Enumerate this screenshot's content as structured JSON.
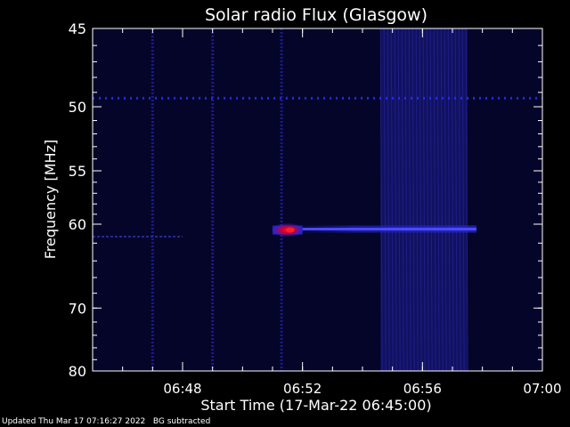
{
  "chart_data": {
    "type": "heatmap",
    "title": "Solar radio Flux (Glasgow)",
    "xlabel": "Start Time (17-Mar-22 06:45:00)",
    "ylabel": "Frequency [MHz]",
    "x_unit": "minutes after 06:45:00",
    "xlim": [
      0,
      15
    ],
    "ylim": [
      45,
      80
    ],
    "y_scale": "reciprocal",
    "x_ticks": [
      {
        "value": 3,
        "label": "06:48"
      },
      {
        "value": 7,
        "label": "06:52"
      },
      {
        "value": 11,
        "label": "06:56"
      },
      {
        "value": 15,
        "label": "07:00"
      }
    ],
    "y_ticks": [
      {
        "value": 45,
        "label": "45"
      },
      {
        "value": 50,
        "label": "50"
      },
      {
        "value": 55,
        "label": "55"
      },
      {
        "value": 60,
        "label": "60"
      },
      {
        "value": 70,
        "label": "70"
      },
      {
        "value": 80,
        "label": "80"
      }
    ],
    "features": [
      {
        "kind": "horizontal_band",
        "name": "interference line",
        "freq": 49.4,
        "start": 0,
        "end": 15
      },
      {
        "kind": "horizontal_band",
        "name": "faint emission line",
        "freq": 61.3,
        "start": 0,
        "end": 3
      },
      {
        "kind": "burst",
        "name": "peak burst",
        "freq": 60.6,
        "start": 6.0,
        "end": 7.0
      },
      {
        "kind": "horizontal_band",
        "name": "drifting emission line",
        "freq": 60.5,
        "start": 7.0,
        "end": 12.8
      },
      {
        "kind": "vertical_band",
        "name": "broadband noise",
        "start": 9.6,
        "end": 12.5
      },
      {
        "kind": "vertical_line",
        "name": "spike",
        "time": 2.0
      },
      {
        "kind": "vertical_line",
        "name": "spike",
        "time": 4.0
      },
      {
        "kind": "vertical_line",
        "name": "spike",
        "time": 6.3
      }
    ],
    "grid": false
  },
  "footer": {
    "updated": "Updated Thu Mar 17 07:16:27 2022",
    "note": "BG subtracted"
  },
  "colors": {
    "background": "#000000",
    "low": "#06062e",
    "mid": "#2a2aff",
    "high": "#ff1010"
  }
}
